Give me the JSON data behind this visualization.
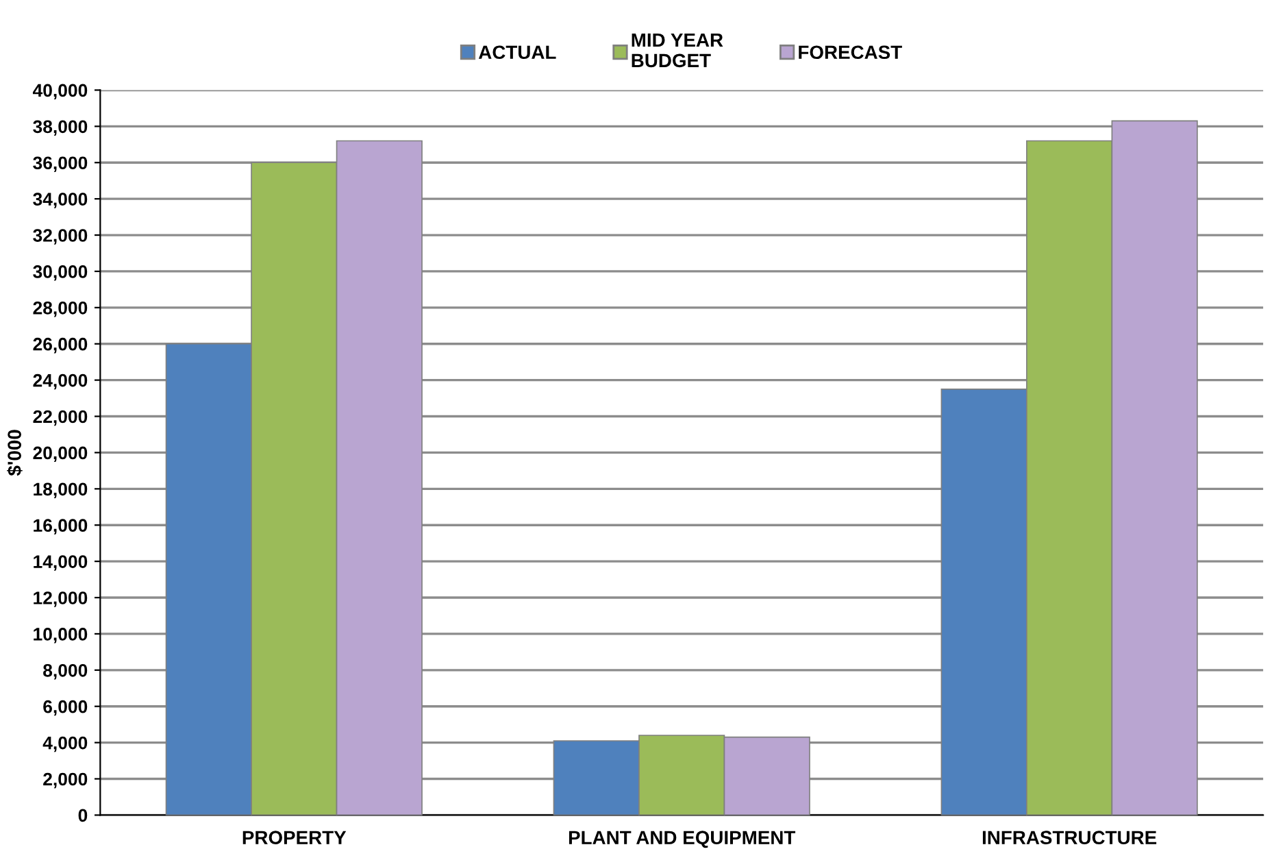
{
  "chart_data": {
    "type": "bar",
    "ylabel": "$'000",
    "categories": [
      "PROPERTY",
      "PLANT AND EQUIPMENT",
      "INFRASTRUCTURE"
    ],
    "series": [
      {
        "name": "ACTUAL",
        "color": "#4f81bd",
        "values": [
          26000,
          4100,
          23500
        ]
      },
      {
        "name": "MID YEAR\nBUDGET",
        "color": "#9bbb59",
        "values": [
          36000,
          4400,
          37200
        ]
      },
      {
        "name": "FORECAST",
        "color": "#b9a5d1",
        "values": [
          37200,
          4300,
          38300
        ]
      }
    ],
    "ylim": [
      0,
      40000
    ],
    "yticks": [
      {
        "value": 0,
        "label": "0"
      },
      {
        "value": 2000,
        "label": "2,000"
      },
      {
        "value": 4000,
        "label": "4,000"
      },
      {
        "value": 6000,
        "label": "6,000"
      },
      {
        "value": 8000,
        "label": "8,000"
      },
      {
        "value": 10000,
        "label": "10,000"
      },
      {
        "value": 12000,
        "label": "12,000"
      },
      {
        "value": 14000,
        "label": "14,000"
      },
      {
        "value": 16000,
        "label": "16,000"
      },
      {
        "value": 18000,
        "label": "18,000"
      },
      {
        "value": 20000,
        "label": "20,000"
      },
      {
        "value": 22000,
        "label": "22,000"
      },
      {
        "value": 24000,
        "label": "24,000"
      },
      {
        "value": 26000,
        "label": "26,000"
      },
      {
        "value": 28000,
        "label": "28,000"
      },
      {
        "value": 30000,
        "label": "30,000"
      },
      {
        "value": 32000,
        "label": "32,000"
      },
      {
        "value": 34000,
        "label": "34,000"
      },
      {
        "value": 36000,
        "label": "36,000"
      },
      {
        "value": 38000,
        "label": "38,000"
      },
      {
        "value": 40000,
        "label": "40,000"
      }
    ],
    "grid": "y",
    "legend": "top"
  }
}
